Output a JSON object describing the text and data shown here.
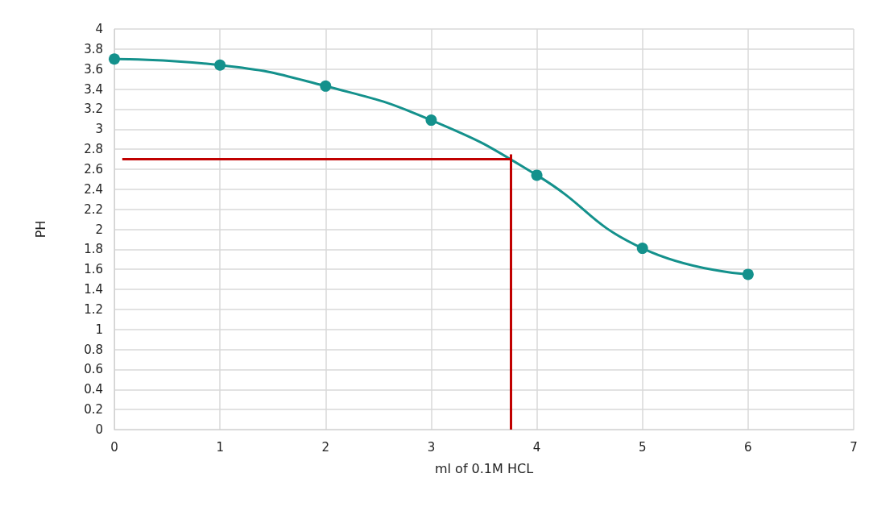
{
  "chart_data": {
    "type": "line",
    "xlabel": "ml of 0.1M HCL",
    "ylabel": "PH",
    "x": [
      0,
      1,
      2,
      3,
      4,
      5,
      6
    ],
    "series": [
      {
        "color": "#14918c",
        "values": [
          3.7,
          3.64,
          3.43,
          3.09,
          2.54,
          1.81,
          1.55
        ]
      }
    ],
    "xlim": [
      0,
      7
    ],
    "xticks": [
      0,
      1,
      2,
      3,
      4,
      5,
      6,
      7
    ],
    "ylim": [
      0,
      4
    ],
    "yticks": [
      0,
      0.2,
      0.4,
      0.6,
      0.8,
      1,
      1.2,
      1.4,
      1.6,
      1.8,
      2,
      2.2,
      2.4,
      2.6,
      2.8,
      3,
      3.2,
      3.4,
      3.6,
      3.8,
      4
    ],
    "ref_lines": [
      {
        "axis": "y",
        "value": 2.7,
        "color": "#c00000"
      },
      {
        "axis": "x",
        "value": 3.75,
        "color": "#c00000"
      }
    ],
    "grid": true,
    "marker": "circle",
    "line_style": "solid"
  }
}
